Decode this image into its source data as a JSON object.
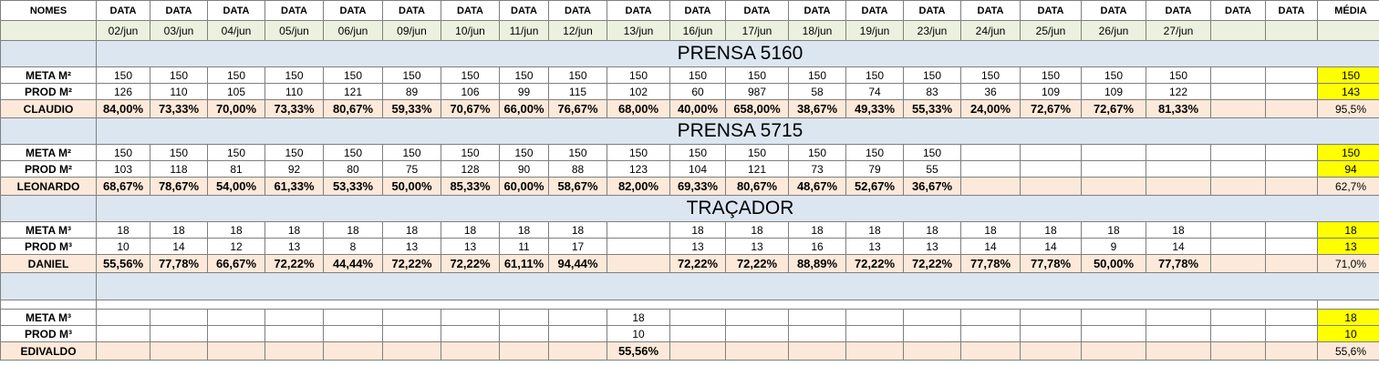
{
  "header": {
    "nomes": "NOMES",
    "data_labels": [
      "DATA",
      "DATA",
      "DATA",
      "DATA",
      "DATA",
      "DATA",
      "DATA",
      "DATA",
      "DATA",
      "DATA",
      "DATA",
      "DATA",
      "DATA",
      "DATA",
      "DATA",
      "DATA",
      "DATA",
      "DATA",
      "DATA",
      "DATA",
      "DATA"
    ],
    "media": "MÉDIA",
    "dates": [
      "02/jun",
      "03/jun",
      "04/jun",
      "05/jun",
      "06/jun",
      "09/jun",
      "10/jun",
      "11/jun",
      "12/jun",
      "13/jun",
      "16/jun",
      "17/jun",
      "18/jun",
      "19/jun",
      "23/jun",
      "24/jun",
      "25/jun",
      "26/jun",
      "27/jun",
      "",
      ""
    ]
  },
  "sections": [
    {
      "title": "PRENSA 5160",
      "meta_label": "META M²",
      "prod_label": "PROD M²",
      "name": "CLAUDIO",
      "meta": [
        "150",
        "150",
        "150",
        "150",
        "150",
        "150",
        "150",
        "150",
        "150",
        "150",
        "150",
        "150",
        "150",
        "150",
        "150",
        "150",
        "150",
        "150",
        "150",
        "",
        ""
      ],
      "prod": [
        "126",
        "110",
        "105",
        "110",
        "121",
        "89",
        "106",
        "99",
        "115",
        "102",
        "60",
        "987",
        "58",
        "74",
        "83",
        "36",
        "109",
        "109",
        "122",
        "",
        ""
      ],
      "pct": [
        "84,00%",
        "73,33%",
        "70,00%",
        "73,33%",
        "80,67%",
        "59,33%",
        "70,67%",
        "66,00%",
        "76,67%",
        "68,00%",
        "40,00%",
        "658,00%",
        "38,67%",
        "49,33%",
        "55,33%",
        "24,00%",
        "72,67%",
        "72,67%",
        "81,33%",
        "",
        ""
      ],
      "avg_meta": "150",
      "avg_prod": "143",
      "avg_pct": "95,5%"
    },
    {
      "title": "PRENSA 5715",
      "meta_label": "META M²",
      "prod_label": "PROD M²",
      "name": "LEONARDO",
      "meta": [
        "150",
        "150",
        "150",
        "150",
        "150",
        "150",
        "150",
        "150",
        "150",
        "150",
        "150",
        "150",
        "150",
        "150",
        "150",
        "",
        "",
        "",
        "",
        "",
        ""
      ],
      "prod": [
        "103",
        "118",
        "81",
        "92",
        "80",
        "75",
        "128",
        "90",
        "88",
        "123",
        "104",
        "121",
        "73",
        "79",
        "55",
        "",
        "",
        "",
        "",
        "",
        ""
      ],
      "pct": [
        "68,67%",
        "78,67%",
        "54,00%",
        "61,33%",
        "53,33%",
        "50,00%",
        "85,33%",
        "60,00%",
        "58,67%",
        "82,00%",
        "69,33%",
        "80,67%",
        "48,67%",
        "52,67%",
        "36,67%",
        "",
        "",
        "",
        "",
        "",
        ""
      ],
      "avg_meta": "150",
      "avg_prod": "94",
      "avg_pct": "62,7%"
    },
    {
      "title": "TRAÇADOR",
      "meta_label": "META M³",
      "prod_label": "PROD M³",
      "name": "DANIEL",
      "meta": [
        "18",
        "18",
        "18",
        "18",
        "18",
        "18",
        "18",
        "18",
        "18",
        "",
        "18",
        "18",
        "18",
        "18",
        "18",
        "18",
        "18",
        "18",
        "18",
        "",
        ""
      ],
      "prod": [
        "10",
        "14",
        "12",
        "13",
        "8",
        "13",
        "13",
        "11",
        "17",
        "",
        "13",
        "13",
        "16",
        "13",
        "13",
        "14",
        "14",
        "9",
        "14",
        "",
        ""
      ],
      "pct": [
        "55,56%",
        "77,78%",
        "66,67%",
        "72,22%",
        "44,44%",
        "72,22%",
        "72,22%",
        "61,11%",
        "94,44%",
        "",
        "72,22%",
        "72,22%",
        "88,89%",
        "72,22%",
        "72,22%",
        "77,78%",
        "77,78%",
        "50,00%",
        "77,78%",
        "",
        ""
      ],
      "avg_meta": "18",
      "avg_prod": "13",
      "avg_pct": "71,0%"
    },
    {
      "title": "",
      "meta_label": "META M³",
      "prod_label": "PROD M³",
      "name": "EDIVALDO",
      "meta": [
        "",
        "",
        "",
        "",
        "",
        "",
        "",
        "",
        "",
        "18",
        "",
        "",
        "",
        "",
        "",
        "",
        "",
        "",
        "",
        "",
        ""
      ],
      "prod": [
        "",
        "",
        "",
        "",
        "",
        "",
        "",
        "",
        "",
        "10",
        "",
        "",
        "",
        "",
        "",
        "",
        "",
        "",
        "",
        "",
        ""
      ],
      "pct": [
        "",
        "",
        "",
        "",
        "",
        "",
        "",
        "",
        "",
        "55,56%",
        "",
        "",
        "",
        "",
        "",
        "",
        "",
        "",
        "",
        "",
        ""
      ],
      "avg_meta": "18",
      "avg_prod": "10",
      "avg_pct": "55,6%"
    }
  ],
  "colors": {
    "section_band": "#dce6f1",
    "date_row": "#ebf1de",
    "pct_row": "#fde9d9",
    "highlight": "#ffff00",
    "grid": "#7f7f7f"
  }
}
